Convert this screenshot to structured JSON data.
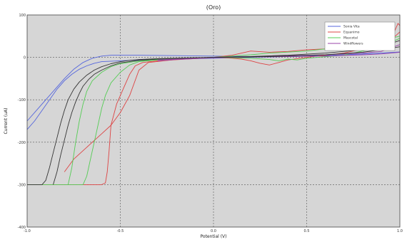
{
  "chart_data": {
    "type": "line",
    "title": "(Oro)",
    "xlabel": "Potential (V)",
    "ylabel": "Current (uA)",
    "xlim": [
      -1.0,
      1.0
    ],
    "ylim": [
      -400,
      100
    ],
    "xticks": [
      -1.0,
      -0.5,
      0.0,
      0.5,
      1.0
    ],
    "xtick_labels": [
      "-1.0",
      "-0.5",
      "0.0",
      "0.5",
      "1.0"
    ],
    "yticks": [
      -400,
      -300,
      -200,
      -100,
      0,
      100
    ],
    "ytick_labels": [
      "-400",
      "-300",
      "-200",
      "-100",
      "0",
      "100"
    ],
    "grid": true,
    "legend_position": "top-right",
    "colors": {
      "background": "#d6d6d6",
      "figure": "#ffffff",
      "grid": "#555555"
    },
    "series": [
      {
        "name": "Sonia Vita",
        "color": "#5566dd",
        "branches": [
          {
            "x": [
              -1.0,
              -0.96,
              -0.92,
              -0.88,
              -0.84,
              -0.8,
              -0.76,
              -0.72,
              -0.68,
              -0.64,
              -0.6,
              -0.5,
              -0.4,
              -0.2,
              0.0,
              0.2,
              0.4,
              0.6,
              0.8,
              0.9,
              1.0
            ],
            "y": [
              -170,
              -150,
              -125,
              -100,
              -75,
              -55,
              -40,
              -28,
              -20,
              -14,
              -10,
              -8,
              -6,
              -4,
              -2,
              0,
              2,
              4,
              8,
              10,
              13
            ]
          },
          {
            "x": [
              -1.0,
              -0.95,
              -0.9,
              -0.85,
              -0.8,
              -0.75,
              -0.7,
              -0.65,
              -0.6,
              -0.55,
              -0.5,
              -0.4,
              -0.2,
              0.0,
              0.2,
              0.4,
              0.6,
              0.8,
              0.9,
              1.0
            ],
            "y": [
              -150,
              -125,
              -100,
              -75,
              -50,
              -28,
              -12,
              -2,
              3,
              5,
              5,
              5,
              4,
              3,
              2,
              2,
              4,
              8,
              10,
              12
            ]
          }
        ]
      },
      {
        "name": "Equanimo",
        "color": "#dd4444",
        "branches": [
          {
            "x": [
              -1.0,
              -0.8,
              -0.6,
              -0.58,
              -0.57,
              -0.56,
              -0.55,
              -0.52,
              -0.48,
              -0.45,
              -0.42,
              -0.38,
              -0.3,
              -0.1,
              0.0,
              0.1,
              0.2,
              0.3,
              0.4,
              0.5,
              0.7,
              0.9,
              0.95,
              1.0
            ],
            "y": [
              -300,
              -300,
              -300,
              -296,
              -270,
              -220,
              -160,
              -110,
              -70,
              -40,
              -20,
              -12,
              -8,
              -3,
              0,
              5,
              15,
              12,
              14,
              18,
              22,
              32,
              40,
              60
            ]
          },
          {
            "x": [
              -0.8,
              -0.75,
              -0.7,
              -0.65,
              -0.6,
              -0.55,
              -0.5,
              -0.45,
              -0.4,
              -0.35,
              -0.2,
              0.0,
              0.1,
              0.15,
              0.2,
              0.25,
              0.3,
              0.35,
              0.4,
              0.5,
              0.6,
              0.7,
              0.8,
              0.9,
              0.95,
              0.97,
              0.99,
              1.0
            ],
            "y": [
              -270,
              -240,
              -220,
              -200,
              -180,
              -160,
              -130,
              -90,
              -30,
              -12,
              -5,
              0,
              -2,
              -4,
              -8,
              -14,
              -18,
              -12,
              -6,
              0,
              5,
              10,
              20,
              30,
              40,
              60,
              80,
              75
            ]
          }
        ]
      },
      {
        "name": "Mascotal",
        "color": "#55cc55",
        "branches": [
          {
            "x": [
              -1.0,
              -0.8,
              -0.7,
              -0.68,
              -0.66,
              -0.64,
              -0.62,
              -0.6,
              -0.58,
              -0.55,
              -0.5,
              -0.45,
              -0.4,
              -0.3,
              -0.1,
              0.0,
              0.1,
              0.2,
              0.3,
              0.5,
              0.7,
              0.9,
              1.0
            ],
            "y": [
              -300,
              -300,
              -300,
              -280,
              -240,
              -200,
              -160,
              -120,
              -90,
              -60,
              -35,
              -18,
              -10,
              -6,
              -2,
              0,
              3,
              6,
              10,
              15,
              25,
              40,
              50
            ]
          },
          {
            "x": [
              -0.78,
              -0.76,
              -0.74,
              -0.72,
              -0.7,
              -0.68,
              -0.65,
              -0.6,
              -0.55,
              -0.5,
              -0.4,
              -0.2,
              0.0,
              0.2,
              0.3,
              0.35,
              0.4,
              0.45,
              0.5,
              0.7,
              0.9,
              1.0
            ],
            "y": [
              -300,
              -260,
              -200,
              -150,
              -110,
              -80,
              -55,
              -35,
              -22,
              -15,
              -8,
              -3,
              0,
              -2,
              -5,
              -8,
              -4,
              -6,
              -2,
              5,
              25,
              45
            ]
          }
        ]
      },
      {
        "name": "Windflowers",
        "color": "#9944aa",
        "branches": [
          {
            "x": [
              -0.3,
              -0.2,
              0.0,
              0.2,
              0.4,
              0.6,
              0.8,
              0.9,
              1.0
            ],
            "y": [
              -6,
              -4,
              0,
              2,
              4,
              6,
              10,
              14,
              30
            ]
          },
          {
            "x": [
              -0.3,
              -0.2,
              0.0,
              0.2,
              0.4,
              0.6,
              0.8,
              0.9,
              1.0
            ],
            "y": [
              -8,
              -5,
              -1,
              1,
              2,
              3,
              6,
              8,
              12
            ]
          }
        ]
      },
      {
        "name": "",
        "color": "#333333",
        "branches": [
          {
            "x": [
              -1.0,
              -0.92,
              -0.9,
              -0.88,
              -0.86,
              -0.84,
              -0.82,
              -0.8,
              -0.78,
              -0.75,
              -0.72,
              -0.68,
              -0.64,
              -0.6,
              -0.55,
              -0.5,
              -0.45,
              -0.4,
              -0.3,
              -0.1,
              0.0,
              0.2,
              0.4,
              0.6,
              0.8,
              0.9,
              1.0
            ],
            "y": [
              -300,
              -300,
              -290,
              -260,
              -225,
              -190,
              -155,
              -125,
              -100,
              -75,
              -58,
              -42,
              -30,
              -22,
              -15,
              -10,
              -7,
              -5,
              -3,
              -1,
              0,
              2,
              5,
              10,
              18,
              25,
              40
            ]
          },
          {
            "x": [
              -0.86,
              -0.84,
              -0.82,
              -0.8,
              -0.78,
              -0.76,
              -0.74,
              -0.72,
              -0.7,
              -0.67,
              -0.64,
              -0.6,
              -0.55,
              -0.5,
              -0.4,
              -0.3,
              -0.1,
              0.0,
              0.2,
              0.4,
              0.6,
              0.8,
              0.9,
              1.0
            ],
            "y": [
              -300,
              -270,
              -230,
              -195,
              -160,
              -130,
              -105,
              -85,
              -68,
              -52,
              -40,
              -30,
              -20,
              -13,
              -7,
              -4,
              -1,
              0,
              1,
              3,
              6,
              12,
              18,
              25
            ]
          }
        ]
      }
    ]
  }
}
